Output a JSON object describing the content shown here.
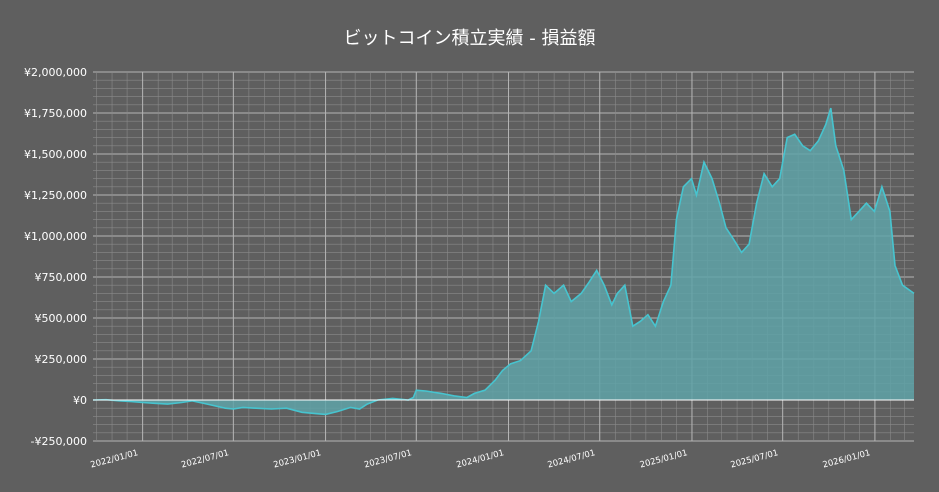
{
  "chart_data": {
    "type": "area",
    "title": "ビットコイン積立実績 - 損益額",
    "xlabel": "",
    "ylabel": "",
    "ylim": [
      -250000,
      2000000
    ],
    "grid": true,
    "legend": "none",
    "colors": {
      "background": "#5f5f5f",
      "line": "#47c4cf",
      "fill": "#5fa3a8",
      "grid": "#8a8a8a",
      "zero_line": "#ffffff"
    },
    "y_ticks": [
      {
        "value": 2000000,
        "label": "¥2,000,000"
      },
      {
        "value": 1750000,
        "label": "¥1,750,000"
      },
      {
        "value": 1500000,
        "label": "¥1,500,000"
      },
      {
        "value": 1250000,
        "label": "¥1,250,000"
      },
      {
        "value": 1000000,
        "label": "¥1,000,000"
      },
      {
        "value": 750000,
        "label": "¥750,000"
      },
      {
        "value": 500000,
        "label": "¥500,000"
      },
      {
        "value": 250000,
        "label": "¥250,000"
      },
      {
        "value": 0,
        "label": "¥0"
      },
      {
        "value": -250000,
        "label": "-¥250,000"
      }
    ],
    "x_range": [
      "2021-09-24",
      "2026-03-20"
    ],
    "x_ticks": [
      {
        "value": "2022-01-01",
        "label": "2022/01/01"
      },
      {
        "value": "2022-07-01",
        "label": "2022/07/01"
      },
      {
        "value": "2023-01-01",
        "label": "2023/01/01"
      },
      {
        "value": "2023-07-01",
        "label": "2023/07/01"
      },
      {
        "value": "2024-01-01",
        "label": "2024/01/01"
      },
      {
        "value": "2024-07-01",
        "label": "2024/07/01"
      },
      {
        "value": "2025-01-01",
        "label": "2025/01/01"
      },
      {
        "value": "2025-07-01",
        "label": "2025/07/01"
      },
      {
        "value": "2026-01-01",
        "label": "2026/01/01"
      }
    ],
    "series": [
      {
        "points": [
          [
            "2021-09-24",
            0
          ],
          [
            "2021-10-20",
            2000
          ],
          [
            "2021-11-15",
            -5000
          ],
          [
            "2021-12-10",
            -10000
          ],
          [
            "2022-01-01",
            -15000
          ],
          [
            "2022-01-25",
            -20000
          ],
          [
            "2022-02-20",
            -25000
          ],
          [
            "2022-03-20",
            -15000
          ],
          [
            "2022-04-10",
            -5000
          ],
          [
            "2022-05-10",
            -25000
          ],
          [
            "2022-06-15",
            -50000
          ],
          [
            "2022-07-01",
            -55000
          ],
          [
            "2022-07-20",
            -45000
          ],
          [
            "2022-08-15",
            -50000
          ],
          [
            "2022-09-15",
            -55000
          ],
          [
            "2022-10-15",
            -50000
          ],
          [
            "2022-11-15",
            -75000
          ],
          [
            "2022-12-20",
            -85000
          ],
          [
            "2023-01-01",
            -88000
          ],
          [
            "2023-01-25",
            -70000
          ],
          [
            "2023-02-20",
            -45000
          ],
          [
            "2023-03-10",
            -55000
          ],
          [
            "2023-03-25",
            -25000
          ],
          [
            "2023-04-15",
            0
          ],
          [
            "2023-05-15",
            10000
          ],
          [
            "2023-06-15",
            0
          ],
          [
            "2023-06-25",
            15000
          ],
          [
            "2023-07-01",
            60000
          ],
          [
            "2023-07-20",
            55000
          ],
          [
            "2023-08-20",
            40000
          ],
          [
            "2023-09-15",
            25000
          ],
          [
            "2023-10-10",
            15000
          ],
          [
            "2023-10-25",
            40000
          ],
          [
            "2023-11-15",
            60000
          ],
          [
            "2023-12-05",
            120000
          ],
          [
            "2023-12-20",
            180000
          ],
          [
            "2024-01-05",
            220000
          ],
          [
            "2024-01-25",
            240000
          ],
          [
            "2024-02-15",
            300000
          ],
          [
            "2024-03-01",
            480000
          ],
          [
            "2024-03-15",
            700000
          ],
          [
            "2024-04-01",
            650000
          ],
          [
            "2024-04-20",
            700000
          ],
          [
            "2024-05-05",
            600000
          ],
          [
            "2024-05-25",
            650000
          ],
          [
            "2024-06-10",
            720000
          ],
          [
            "2024-06-25",
            790000
          ],
          [
            "2024-07-10",
            700000
          ],
          [
            "2024-07-25",
            580000
          ],
          [
            "2024-08-05",
            650000
          ],
          [
            "2024-08-20",
            700000
          ],
          [
            "2024-09-05",
            450000
          ],
          [
            "2024-09-20",
            480000
          ],
          [
            "2024-10-05",
            520000
          ],
          [
            "2024-10-20",
            450000
          ],
          [
            "2024-11-05",
            600000
          ],
          [
            "2024-11-20",
            700000
          ],
          [
            "2024-12-01",
            1100000
          ],
          [
            "2024-12-15",
            1300000
          ],
          [
            "2024-12-31",
            1350000
          ],
          [
            "2025-01-10",
            1250000
          ],
          [
            "2025-01-25",
            1450000
          ],
          [
            "2025-02-10",
            1350000
          ],
          [
            "2025-02-25",
            1200000
          ],
          [
            "2025-03-10",
            1050000
          ],
          [
            "2025-03-25",
            980000
          ],
          [
            "2025-04-10",
            900000
          ],
          [
            "2025-04-25",
            950000
          ],
          [
            "2025-05-10",
            1200000
          ],
          [
            "2025-05-25",
            1380000
          ],
          [
            "2025-06-10",
            1300000
          ],
          [
            "2025-06-25",
            1350000
          ],
          [
            "2025-07-10",
            1600000
          ],
          [
            "2025-07-25",
            1620000
          ],
          [
            "2025-08-10",
            1550000
          ],
          [
            "2025-08-25",
            1520000
          ],
          [
            "2025-09-10",
            1580000
          ],
          [
            "2025-09-25",
            1680000
          ],
          [
            "2025-10-05",
            1780000
          ],
          [
            "2025-10-15",
            1550000
          ],
          [
            "2025-10-31",
            1400000
          ],
          [
            "2025-11-15",
            1100000
          ],
          [
            "2025-11-30",
            1150000
          ],
          [
            "2025-12-15",
            1200000
          ],
          [
            "2025-12-31",
            1150000
          ],
          [
            "2026-01-15",
            1300000
          ],
          [
            "2026-01-31",
            1150000
          ],
          [
            "2026-02-10",
            820000
          ],
          [
            "2026-02-25",
            700000
          ],
          [
            "2026-03-20",
            650000
          ]
        ]
      }
    ]
  }
}
